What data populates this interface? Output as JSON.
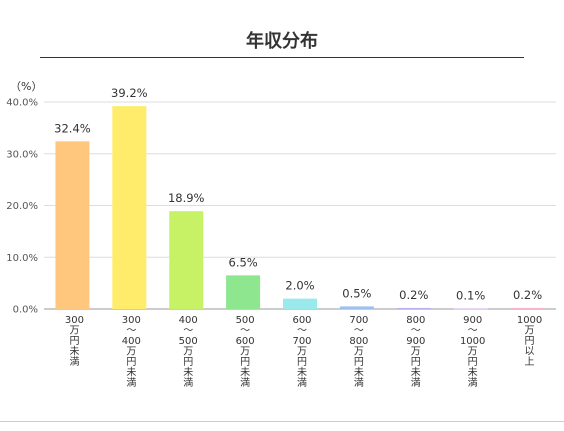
{
  "chart_data": {
    "type": "bar",
    "title": "年収分布",
    "ylabel": "（%）",
    "ylim": [
      0,
      40
    ],
    "yticks": [
      "0.0%",
      "10.0%",
      "20.0%",
      "30.0%",
      "40.0%"
    ],
    "grid": true,
    "legend": "none",
    "categories": [
      "300\n万円未満",
      "300\n〜\n400\n万円未満",
      "400\n〜\n500\n万円未満",
      "500\n〜\n600\n万円未満",
      "600\n〜\n700\n万円未満",
      "700\n〜\n800\n万円未満",
      "800\n〜\n900\n万円未満",
      "900\n〜\n1000\n万円未満",
      "1000\n万円以上"
    ],
    "values": [
      32.4,
      39.2,
      18.9,
      6.5,
      2.0,
      0.5,
      0.2,
      0.1,
      0.2
    ],
    "data_labels": [
      "32.4%",
      "39.2%",
      "18.9%",
      "6.5%",
      "2.0%",
      "0.5%",
      "0.2%",
      "0.1%",
      "0.2%"
    ],
    "colors": [
      "#ffc77d",
      "#ffec6b",
      "#c8f266",
      "#8ee68f",
      "#9ae9ec",
      "#9cc1f0",
      "#b9aef0",
      "#d7b0ef",
      "#f7b3c8"
    ]
  }
}
